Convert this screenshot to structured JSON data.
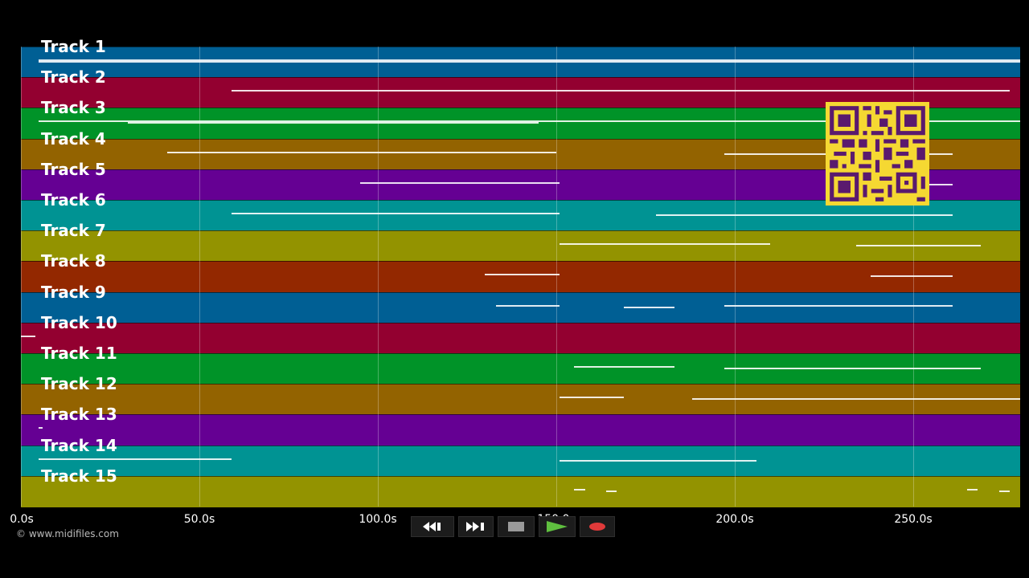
{
  "app": {
    "copyright": "© www.midifiles.com",
    "duration_seconds": 280
  },
  "timeline": {
    "ticks": [
      {
        "seconds": 0,
        "label": "0.0s"
      },
      {
        "seconds": 50,
        "label": "50.0s"
      },
      {
        "seconds": 100,
        "label": "100.0s"
      },
      {
        "seconds": 150,
        "label": "150.0s"
      },
      {
        "seconds": 200,
        "label": "200.0s"
      },
      {
        "seconds": 250,
        "label": "250.0s"
      }
    ]
  },
  "tracks": [
    {
      "label": "Track 1",
      "color": "#005f94",
      "notes": [
        [
          5,
          280
        ],
        [
          5,
          280
        ]
      ]
    },
    {
      "label": "Track 2",
      "color": "#930030",
      "notes": [
        [
          59,
          277
        ]
      ]
    },
    {
      "label": "Track 3",
      "color": "#009328",
      "notes": [
        [
          5,
          280
        ],
        [
          30,
          145
        ]
      ]
    },
    {
      "label": "Track 4",
      "color": "#936300",
      "notes": [
        [
          41,
          150
        ],
        [
          197,
          261
        ]
      ]
    },
    {
      "label": "Track 5",
      "color": "#650093",
      "notes": [
        [
          95,
          151
        ],
        [
          234,
          261
        ]
      ]
    },
    {
      "label": "Track 6",
      "color": "#009393",
      "notes": [
        [
          59,
          151
        ],
        [
          178,
          261
        ]
      ]
    },
    {
      "label": "Track 7",
      "color": "#939300",
      "notes": [
        [
          151,
          210
        ],
        [
          234,
          269
        ]
      ]
    },
    {
      "label": "Track 8",
      "color": "#932800",
      "notes": [
        [
          130,
          151
        ],
        [
          238,
          261
        ]
      ]
    },
    {
      "label": "Track 9",
      "color": "#005f94",
      "notes": [
        [
          133,
          151
        ],
        [
          169,
          183
        ],
        [
          197,
          261
        ]
      ]
    },
    {
      "label": "Track 10",
      "color": "#930030",
      "notes": [
        [
          0,
          4
        ]
      ]
    },
    {
      "label": "Track 11",
      "color": "#009328",
      "notes": [
        [
          155,
          183
        ],
        [
          197,
          269
        ]
      ]
    },
    {
      "label": "Track 12",
      "color": "#936300",
      "notes": [
        [
          151,
          169
        ],
        [
          188,
          280
        ]
      ]
    },
    {
      "label": "Track 13",
      "color": "#650093",
      "notes": [
        [
          5,
          6
        ]
      ]
    },
    {
      "label": "Track 14",
      "color": "#009393",
      "notes": [
        [
          5,
          59
        ],
        [
          151,
          206
        ]
      ]
    },
    {
      "label": "Track 15",
      "color": "#939300",
      "notes": [
        [
          155,
          158
        ],
        [
          164,
          167
        ],
        [
          265,
          268
        ],
        [
          274,
          277
        ]
      ]
    }
  ],
  "transport": {
    "rewind_icon": "rewind-icon",
    "fast_forward_icon": "fast-forward-icon",
    "stop_icon": "stop-icon",
    "play_icon": "play-icon",
    "record_icon": "record-icon",
    "play_color": "#5fbf3f",
    "record_color": "#e03a3a",
    "stop_color": "#9a9a9a"
  },
  "qr_icon": "qr-code-icon"
}
